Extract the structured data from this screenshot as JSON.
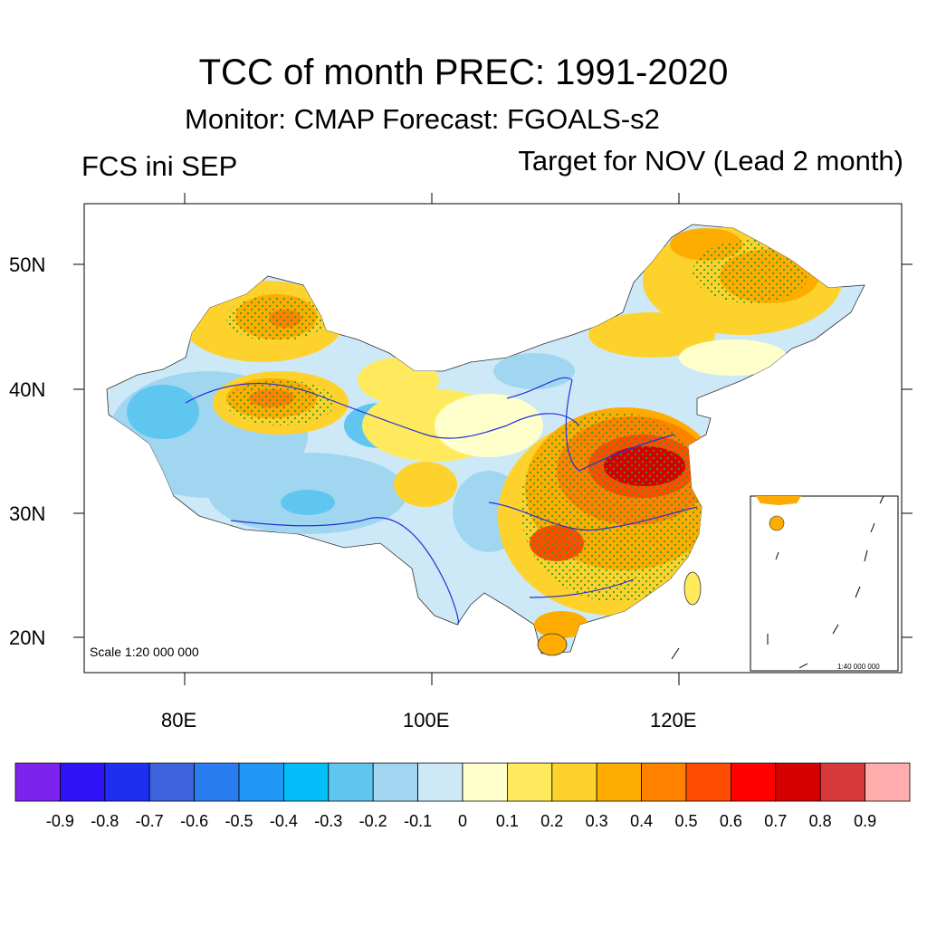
{
  "title": "TCC of month PREC: 1991-2020",
  "subtitle": "Monitor: CMAP   Forecast: FGOALS-s2",
  "left_label": "FCS ini SEP",
  "right_label": "Target for NOV (Lead 2 month)",
  "scale_main": "Scale 1:20 000 000",
  "scale_inset": "1:40 000 000",
  "lat_ticks": [
    "50N",
    "40N",
    "30N",
    "20N"
  ],
  "lon_ticks": [
    "80E",
    "100E",
    "120E"
  ],
  "colorbar": {
    "colors": [
      "#7e22ee",
      "#2f12f5",
      "#1d2ff0",
      "#3c63dc",
      "#2a7df0",
      "#1f98f6",
      "#04bef9",
      "#5fc6ef",
      "#a1d6f1",
      "#cde9f7",
      "#ffffcc",
      "#ffea5d",
      "#fed22c",
      "#feac00",
      "#fe8200",
      "#fe4d00",
      "#fe0000",
      "#d60000",
      "#d6393a",
      "#ffadad"
    ],
    "labels": [
      "-0.9",
      "-0.8",
      "-0.7",
      "-0.6",
      "-0.5",
      "-0.4",
      "-0.3",
      "-0.2",
      "-0.1",
      "0",
      "0.1",
      "0.2",
      "0.3",
      "0.4",
      "0.5",
      "0.6",
      "0.7",
      "0.8",
      "0.9"
    ]
  }
}
